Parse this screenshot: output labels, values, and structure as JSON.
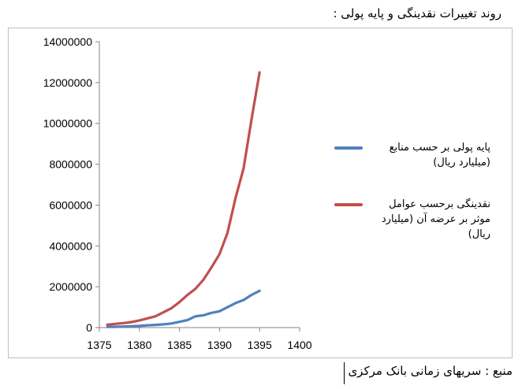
{
  "page": {
    "heading": "روند تغییرات نقدینگی و پایه پولی :",
    "source": "منبع : سریهای زمانی بانک مرکزی"
  },
  "chart_data": {
    "type": "line",
    "title": "",
    "xlabel": "",
    "ylabel": "",
    "xlim": [
      1375,
      1400
    ],
    "ylim": [
      0,
      14000000
    ],
    "x_ticks": [
      1375,
      1380,
      1385,
      1390,
      1395,
      1400
    ],
    "y_ticks": [
      0,
      2000000,
      4000000,
      6000000,
      8000000,
      10000000,
      12000000,
      14000000
    ],
    "grid": "off",
    "legend_position": "right",
    "series": [
      {
        "name": "پایه پولی بر حسب منابع (میلیارد ریال)",
        "color": "#4f81bd",
        "x": [
          1376,
          1377,
          1378,
          1379,
          1380,
          1381,
          1382,
          1383,
          1384,
          1385,
          1386,
          1387,
          1388,
          1389,
          1390,
          1391,
          1392,
          1393,
          1394,
          1395
        ],
        "y": [
          30000,
          40000,
          50000,
          65000,
          80000,
          110000,
          130000,
          160000,
          200000,
          280000,
          370000,
          550000,
          600000,
          720000,
          800000,
          1000000,
          1200000,
          1350000,
          1600000,
          1800000
        ]
      },
      {
        "name": "نقدینگی برحسب عوامل موثر بر عرضه آن (میلیارد ریال)",
        "color": "#c0504d",
        "x": [
          1376,
          1377,
          1378,
          1379,
          1380,
          1381,
          1382,
          1383,
          1384,
          1385,
          1386,
          1387,
          1388,
          1389,
          1390,
          1391,
          1392,
          1393,
          1394,
          1395
        ],
        "y": [
          140000,
          180000,
          220000,
          270000,
          350000,
          450000,
          550000,
          750000,
          950000,
          1250000,
          1600000,
          1900000,
          2350000,
          2950000,
          3600000,
          4650000,
          6350000,
          7800000,
          10200000,
          12500000
        ]
      }
    ]
  }
}
